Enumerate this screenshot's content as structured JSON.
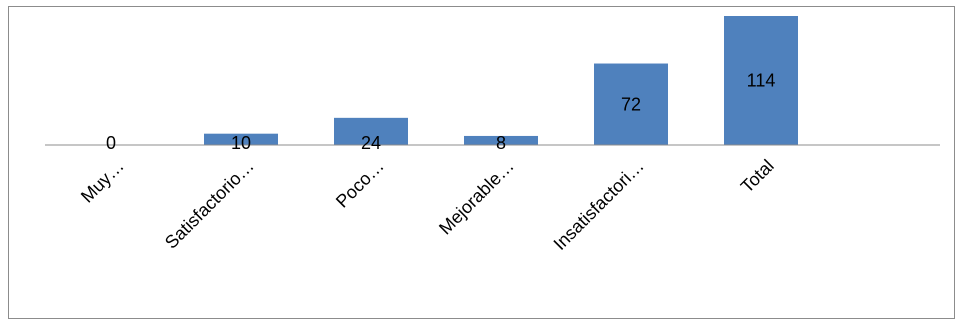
{
  "chart_data": {
    "type": "bar",
    "categories": [
      "Muy…",
      "Satisfactorio…",
      "Poco…",
      "Mejorable…",
      "Insatisfactori…",
      "Total"
    ],
    "values": [
      0,
      10,
      24,
      8,
      72,
      114
    ],
    "data_labels": [
      "0",
      "10",
      "24",
      "8",
      "72",
      "114"
    ],
    "title": "",
    "xlabel": "",
    "ylabel": "",
    "ylim": [
      0,
      114
    ],
    "grid": false,
    "legend": "none",
    "bar_color": "#4F81BD"
  }
}
